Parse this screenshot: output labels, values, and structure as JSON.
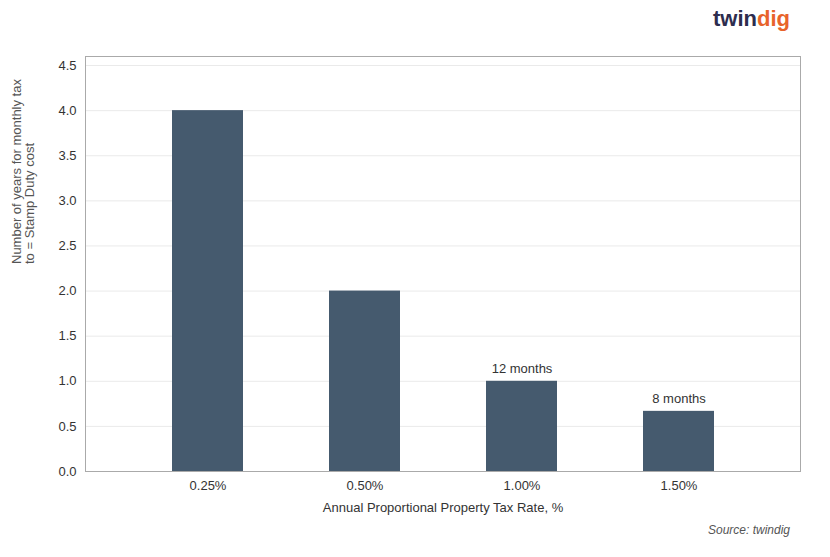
{
  "chart_data": {
    "type": "bar",
    "categories": [
      "0.25%",
      "0.50%",
      "1.00%",
      "1.50%"
    ],
    "values": [
      4.0,
      2.0,
      1.0,
      0.6667
    ],
    "color": "#455a6e",
    "xlabel": "Annual Proportional Property Tax Rate, %",
    "ylabel": "Number of years for monthly tax\nto = Stamp Duty cost",
    "ylim": [
      0,
      4.6
    ],
    "yticks": [
      {
        "value": 0,
        "label": "0.0"
      },
      0.5,
      {
        "value": 1,
        "label": "1.0"
      },
      1.5,
      {
        "value": 2,
        "label": "2.0"
      },
      2.5,
      {
        "value": 3,
        "label": "3.0"
      },
      3.5,
      {
        "value": 4,
        "label": "4.0"
      },
      4.5
    ],
    "grid": true,
    "annotations": [
      {
        "text": "12 months",
        "category": "1.00%"
      },
      {
        "text": "8 months",
        "category": "1.50%"
      },
      {
        "text": "twin",
        "color": "#2d2d4e"
      },
      {
        "text": "dig",
        "color": "#e8632a"
      }
    ],
    "caption": "Source: twindig"
  }
}
